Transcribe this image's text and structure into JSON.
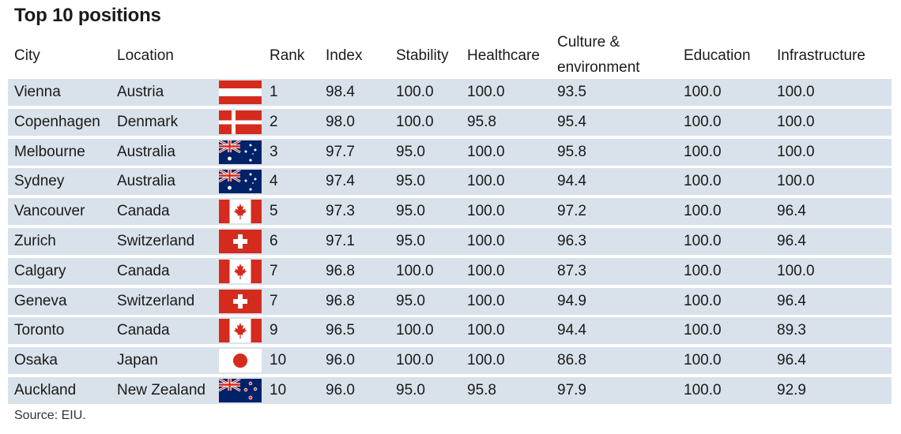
{
  "title": "Top 10 positions",
  "source": "Source: EIU.",
  "headers": {
    "city": "City",
    "location": "Location",
    "rank": "Rank",
    "index": "Index",
    "stability": "Stability",
    "healthcare": "Healthcare",
    "culture_line1": "Culture &",
    "culture_line2": "environment",
    "education": "Education",
    "infrastructure": "Infrastructure"
  },
  "chart_data": {
    "type": "table",
    "columns": [
      "City",
      "Location",
      "Rank",
      "Index",
      "Stability",
      "Healthcare",
      "Culture & environment",
      "Education",
      "Infrastructure"
    ],
    "rows": [
      {
        "city": "Vienna",
        "location": "Austria",
        "flag": "austria-flag",
        "rank": "1",
        "index": "98.4",
        "stability": "100.0",
        "healthcare": "100.0",
        "culture": "93.5",
        "education": "100.0",
        "infrastructure": "100.0"
      },
      {
        "city": "Copenhagen",
        "location": "Denmark",
        "flag": "denmark-flag",
        "rank": "2",
        "index": "98.0",
        "stability": "100.0",
        "healthcare": "95.8",
        "culture": "95.4",
        "education": "100.0",
        "infrastructure": "100.0"
      },
      {
        "city": "Melbourne",
        "location": "Australia",
        "flag": "australia-flag",
        "rank": "3",
        "index": "97.7",
        "stability": "95.0",
        "healthcare": "100.0",
        "culture": "95.8",
        "education": "100.0",
        "infrastructure": "100.0"
      },
      {
        "city": "Sydney",
        "location": "Australia",
        "flag": "australia-flag",
        "rank": "4",
        "index": "97.4",
        "stability": "95.0",
        "healthcare": "100.0",
        "culture": "94.4",
        "education": "100.0",
        "infrastructure": "100.0"
      },
      {
        "city": "Vancouver",
        "location": "Canada",
        "flag": "canada-flag",
        "rank": "5",
        "index": "97.3",
        "stability": "95.0",
        "healthcare": "100.0",
        "culture": "97.2",
        "education": "100.0",
        "infrastructure": "96.4"
      },
      {
        "city": "Zurich",
        "location": "Switzerland",
        "flag": "switzerland-flag",
        "rank": "6",
        "index": "97.1",
        "stability": "95.0",
        "healthcare": "100.0",
        "culture": "96.3",
        "education": "100.0",
        "infrastructure": "96.4"
      },
      {
        "city": "Calgary",
        "location": "Canada",
        "flag": "canada-flag",
        "rank": "7",
        "index": "96.8",
        "stability": "100.0",
        "healthcare": "100.0",
        "culture": "87.3",
        "education": "100.0",
        "infrastructure": "100.0"
      },
      {
        "city": "Geneva",
        "location": "Switzerland",
        "flag": "switzerland-flag",
        "rank": "7",
        "index": "96.8",
        "stability": "95.0",
        "healthcare": "100.0",
        "culture": "94.9",
        "education": "100.0",
        "infrastructure": "96.4"
      },
      {
        "city": "Toronto",
        "location": "Canada",
        "flag": "canada-flag",
        "rank": "9",
        "index": "96.5",
        "stability": "100.0",
        "healthcare": "100.0",
        "culture": "94.4",
        "education": "100.0",
        "infrastructure": "89.3"
      },
      {
        "city": "Osaka",
        "location": "Japan",
        "flag": "japan-flag",
        "rank": "10",
        "index": "96.0",
        "stability": "100.0",
        "healthcare": "100.0",
        "culture": "86.8",
        "education": "100.0",
        "infrastructure": "96.4"
      },
      {
        "city": "Auckland",
        "location": "New Zealand",
        "flag": "new-zealand-flag",
        "rank": "10",
        "index": "96.0",
        "stability": "95.0",
        "healthcare": "95.8",
        "culture": "97.9",
        "education": "100.0",
        "infrastructure": "92.9"
      }
    ]
  },
  "colors": {
    "row_band": "#d9e2ea",
    "flag_red": "#d52b1e",
    "flag_blue": "#012169"
  }
}
